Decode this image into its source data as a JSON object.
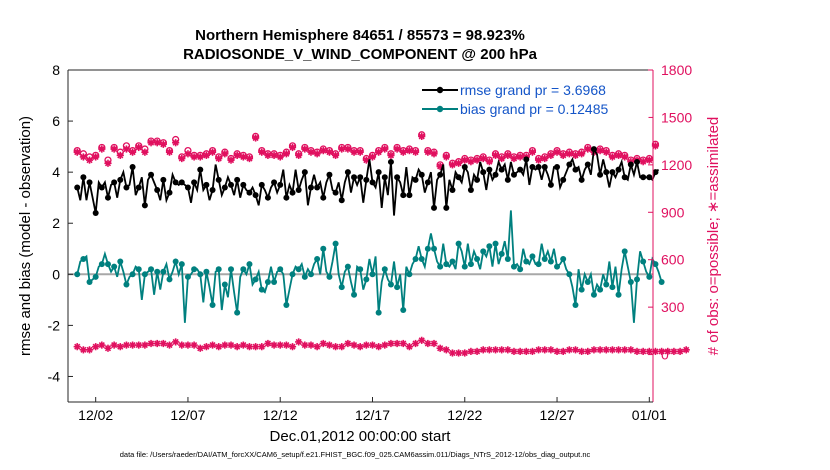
{
  "chart_data": {
    "type": "line",
    "title_line1": "Northern Hemisphere 84651 / 85573 = 98.923%",
    "title_line2": "RADIOSONDE_V_WIND_COMPONENT @ 200 hPa",
    "xlabel": "Dec.01,2012 00:00:00 start",
    "ylabel_left": "rmse and bias (model - observation)",
    "ylabel_right": "# of obs: o=possible; ∗=assimilated",
    "footer": "data file: /Users/raeder/DAI/ATM_forcXX/CAM6_setup/f.e21.FHIST_BGC.f09_025.CAM6assim.011/Diags_NTrS_2012-12/obs_diag_output.nc",
    "x_range": [
      -0.5,
      31.2
    ],
    "xticks": [
      {
        "x": 1,
        "label": "12/02"
      },
      {
        "x": 6,
        "label": "12/07"
      },
      {
        "x": 11,
        "label": "12/12"
      },
      {
        "x": 16,
        "label": "12/17"
      },
      {
        "x": 21,
        "label": "12/22"
      },
      {
        "x": 26,
        "label": "12/27"
      },
      {
        "x": 31,
        "label": "01/01"
      }
    ],
    "yleft": {
      "min": -5,
      "max": 8,
      "ticks": [
        -4,
        -2,
        0,
        2,
        4,
        6,
        8
      ]
    },
    "yright": {
      "min": -300,
      "max": 1800,
      "ticks": [
        0,
        300,
        600,
        900,
        1200,
        1500,
        1800
      ]
    },
    "legend": [
      {
        "name": "rmse grand pr = 3.6968"
      },
      {
        "name": "bias grand pr = 0.12485"
      }
    ],
    "series_rmse": {
      "name": "rmse",
      "color": "#000000",
      "values": [
        3.4,
        2.9,
        3.8,
        2.9,
        3.6,
        3.0,
        2.4,
        3.6,
        3.4,
        3.6,
        3.0,
        3.5,
        3.6,
        3.0,
        3.7,
        4.0,
        3.4,
        3.5,
        4.2,
        3.1,
        3.4,
        3.8,
        2.7,
        3.7,
        3.9,
        3.6,
        3.3,
        2.9,
        3.7,
        2.9,
        3.2,
        3.9,
        3.6,
        3.5,
        3.6,
        3.5,
        3.4,
        2.8,
        3.6,
        3.3,
        4.1,
        3.3,
        3.5,
        2.9,
        3.3,
        4.3,
        3.7,
        3.1,
        3.4,
        3.8,
        3.5,
        3.1,
        3.7,
        3.0,
        3.5,
        3.3,
        3.2,
        3.4,
        3.1,
        2.7,
        3.5,
        3.3,
        3.0,
        3.4,
        3.6,
        3.2,
        3.5,
        4.1,
        3.0,
        3.5,
        3.2,
        4.1,
        3.3,
        3.7,
        4.0,
        2.7,
        3.4,
        3.9,
        3.4,
        3.6,
        3.0,
        3.6,
        3.9,
        3.3,
        3.2,
        3.6,
        2.9,
        3.6,
        4.0,
        3.2,
        3.8,
        3.5,
        3.8,
        2.8,
        3.7,
        4.5,
        3.6,
        3.4,
        4.0,
        2.6,
        3.8,
        3.1,
        4.4,
        2.3,
        3.8,
        3.6,
        3.1,
        4.2,
        3.1,
        3.8,
        3.7,
        4.1,
        3.9,
        3.2,
        3.6,
        4.0,
        2.6,
        3.7,
        3.9,
        4.3,
        2.6,
        3.7,
        3.3,
        4.0,
        3.8,
        3.6,
        4.2,
        4.0,
        3.3,
        3.9,
        3.7,
        4.4,
        4.0,
        3.3,
        4.1,
        3.7,
        3.9,
        4.4,
        4.1,
        4.3,
        3.7,
        4.4,
        3.9,
        4.0,
        4.1,
        3.9,
        4.5,
        3.5,
        4.2,
        4.1,
        4.2,
        3.7,
        4.2,
        3.9,
        3.5,
        4.2,
        4.2,
        3.4,
        3.7,
        4.0,
        4.3,
        4.5,
        4.1,
        4.2,
        3.7,
        4.1,
        4.3,
        3.9,
        4.9,
        4.7,
        3.9,
        4.5,
        4.0,
        3.4,
        4.0,
        3.8,
        4.1,
        4.4,
        3.8,
        3.7,
        4.3,
        3.9,
        4.4,
        3.8,
        3.8,
        3.8,
        3.8,
        3.7,
        4.0,
        4.1
      ]
    },
    "series_bias": {
      "name": "bias",
      "color": "#00807f",
      "values": [
        0.0,
        0.5,
        0.6,
        0.7,
        -0.3,
        -0.2,
        -0.1,
        0.3,
        0.4,
        0.8,
        0.4,
        0.1,
        0.3,
        -0.1,
        0.5,
        0.1,
        -0.4,
        -0.1,
        0.0,
        0.3,
        0.2,
        -1.0,
        0.0,
        0.1,
        0.2,
        -0.8,
        0.1,
        -0.6,
        0.1,
        0.4,
        -0.2,
        0.1,
        0.5,
        0.0,
        0.4,
        -1.9,
        -0.1,
        0.0,
        0.2,
        0.2,
        0.0,
        -1.1,
        0.1,
        -0.5,
        -1.2,
        0.1,
        0.2,
        -1.4,
        -0.4,
        -0.9,
        0.2,
        -0.7,
        -1.5,
        -0.1,
        0.2,
        0.0,
        0.4,
        -0.4,
        -0.2,
        0.1,
        -0.6,
        -0.7,
        -0.3,
        0.3,
        -0.3,
        0.1,
        0.2,
        0.0,
        -1.2,
        -0.6,
        0.0,
        0.3,
        0.2,
        0.4,
        -0.1,
        0.2,
        0.0,
        0.4,
        0.6,
        0.0,
        1.0,
        0.1,
        -0.1,
        0.5,
        1.2,
        0.0,
        -0.5,
        0.1,
        0.3,
        -0.3,
        -0.8,
        0.3,
        0.2,
        -0.6,
        -0.2,
        0.6,
        0.0,
        0.7,
        -1.5,
        -0.3,
        0.2,
        -0.2,
        -0.4,
        0.5,
        -0.5,
        0.0,
        -1.4,
        0.3,
        0.0,
        0.4,
        0.6,
        1.1,
        0.6,
        0.3,
        1.0,
        1.6,
        1.0,
        0.5,
        0.3,
        1.2,
        0.4,
        0.3,
        0.5,
        0.2,
        1.2,
        0.9,
        0.3,
        1.2,
        0.4,
        0.9,
        0.6,
        0.2,
        0.9,
        0.7,
        1.1,
        0.3,
        1.2,
        0.4,
        0.8,
        1.3,
        0.6,
        2.5,
        0.3,
        0.4,
        0.2,
        1.0,
        0.5,
        0.4,
        0.7,
        0.4,
        0.4,
        1.2,
        0.6,
        0.9,
        0.5,
        1.0,
        0.3,
        0.4,
        0.6,
        0.2,
        0.0,
        -0.5,
        -1.2,
        0.2,
        -0.6,
        0.0,
        -0.3,
        0.0,
        -0.8,
        -0.4,
        -0.6,
        0.0,
        -0.4,
        0.5,
        -0.5,
        0.3,
        -0.8,
        0.2,
        0.9,
        0.3,
        -0.3,
        -1.9,
        -0.2,
        0.9,
        0.5,
        0.1,
        -0.1,
        0.6,
        0.4,
        0.1,
        -0.3
      ]
    },
    "series_obs_possible": {
      "name": "# of obs possible",
      "color": "#e0105f",
      "values": [
        1290,
        1280,
        1270,
        1305,
        1250,
        1290,
        1260,
        1260,
        1310,
        1280,
        1230,
        1290,
        1310,
        1310,
        1280,
        1330,
        1320,
        1300,
        1290,
        1350,
        1320,
        1310,
        1300,
        1340,
        1350,
        1330,
        1350,
        1380,
        1340,
        1320,
        1290,
        1300,
        1360,
        1300,
        1250,
        1290,
        1290,
        1320,
        1260,
        1270,
        1260,
        1330,
        1270,
        1300,
        1290,
        1250,
        1250,
        1270,
        1280,
        1240,
        1240,
        1260,
        1270,
        1250,
        1260,
        1260,
        1250,
        1340,
        1380,
        1310,
        1290,
        1280,
        1270,
        1300,
        1270,
        1320,
        1260,
        1320,
        1280,
        1300,
        1320,
        1280,
        1270,
        1280,
        1310,
        1300,
        1290,
        1290,
        1280,
        1300,
        1300,
        1290,
        1290,
        1290,
        1270,
        1300,
        1310,
        1280,
        1310,
        1290,
        1290,
        1310,
        1290,
        1290,
        1240,
        1250,
        1260,
        1240,
        1290,
        1250,
        1310,
        1300,
        1270,
        1290,
        1310,
        1320,
        1290,
        1250,
        1300,
        1270,
        1290,
        1270,
        1390,
        1410,
        1290,
        1250,
        1280,
        1230,
        1200,
        1210,
        1260,
        1230,
        1210,
        1240,
        1220,
        1260,
        1240,
        1250,
        1230,
        1230,
        1240,
        1250,
        1250,
        1240,
        1230,
        1250,
        1270,
        1240,
        1250,
        1250,
        1270,
        1250,
        1250,
        1250,
        1260,
        1280,
        1260,
        1260,
        1290,
        1280,
        1240,
        1270,
        1250,
        1250,
        1270,
        1270,
        1290,
        1300,
        1270,
        1310,
        1280,
        1300,
        1270,
        1290,
        1280,
        1300,
        1310,
        1260,
        1290,
        1300,
        1300,
        1310,
        1290,
        1300,
        1260,
        1260,
        1270,
        1280,
        1260,
        1270,
        1230,
        1220,
        1240,
        1250,
        1230,
        1230,
        1240,
        1260,
        1330,
        1280
      ]
    },
    "series_obs_assimilated": {
      "name": "# of obs assimilated",
      "color": "#e0105f",
      "values": [
        1280,
        1270,
        1250,
        1290,
        1230,
        1280,
        1250,
        1250,
        1300,
        1260,
        1210,
        1270,
        1300,
        1290,
        1260,
        1320,
        1300,
        1280,
        1280,
        1340,
        1310,
        1290,
        1280,
        1330,
        1340,
        1320,
        1340,
        1370,
        1330,
        1310,
        1280,
        1290,
        1340,
        1290,
        1240,
        1280,
        1270,
        1310,
        1250,
        1260,
        1250,
        1320,
        1260,
        1290,
        1280,
        1240,
        1240,
        1260,
        1270,
        1230,
        1230,
        1250,
        1260,
        1240,
        1250,
        1250,
        1240,
        1330,
        1370,
        1300,
        1280,
        1270,
        1260,
        1290,
        1260,
        1310,
        1250,
        1310,
        1270,
        1290,
        1310,
        1270,
        1260,
        1270,
        1300,
        1290,
        1280,
        1280,
        1270,
        1290,
        1290,
        1280,
        1280,
        1280,
        1260,
        1290,
        1300,
        1270,
        1300,
        1280,
        1280,
        1300,
        1280,
        1280,
        1230,
        1240,
        1250,
        1230,
        1280,
        1240,
        1300,
        1290,
        1260,
        1280,
        1300,
        1310,
        1280,
        1240,
        1290,
        1260,
        1280,
        1260,
        1380,
        1400,
        1280,
        1240,
        1270,
        1220,
        1190,
        1200,
        1250,
        1220,
        1200,
        1230,
        1210,
        1250,
        1230,
        1240,
        1220,
        1220,
        1230,
        1240,
        1240,
        1230,
        1220,
        1240,
        1260,
        1230,
        1240,
        1240,
        1260,
        1240,
        1240,
        1240,
        1250,
        1270,
        1250,
        1250,
        1280,
        1270,
        1230,
        1260,
        1240,
        1240,
        1260,
        1260,
        1280,
        1290,
        1260,
        1300,
        1270,
        1290,
        1260,
        1280,
        1270,
        1290,
        1300,
        1250,
        1280,
        1290,
        1290,
        1300,
        1280,
        1290,
        1250,
        1250,
        1260,
        1270,
        1250,
        1260,
        1220,
        1210,
        1230,
        1240,
        1220,
        1220,
        1230,
        1250,
        1320,
        1270
      ]
    },
    "series_obs_low_assimilated": {
      "name": "# of obs (low)",
      "color": "#e0105f",
      "values": [
        50,
        40,
        30,
        40,
        30,
        40,
        50,
        40,
        60,
        50,
        40,
        50,
        60,
        40,
        50,
        50,
        60,
        70,
        60,
        50,
        60,
        80,
        60,
        60,
        70,
        60,
        70,
        60,
        70,
        70,
        60,
        70,
        80,
        60,
        60,
        70,
        60,
        70,
        60,
        50,
        40,
        60,
        50,
        60,
        60,
        50,
        50,
        50,
        60,
        50,
        60,
        60,
        50,
        60,
        60,
        50,
        50,
        60,
        50,
        60,
        50,
        60,
        70,
        50,
        60,
        50,
        60,
        50,
        60,
        60,
        50,
        60,
        80,
        70,
        60,
        70,
        60,
        60,
        50,
        60,
        70,
        60,
        60,
        60,
        50,
        60,
        50,
        60,
        70,
        60,
        60,
        60,
        50,
        60,
        60,
        50,
        60,
        70,
        50,
        60,
        60,
        60,
        70,
        80,
        70,
        60,
        70,
        60,
        50,
        60,
        70,
        80,
        90,
        80,
        70,
        80,
        70,
        60,
        40,
        30,
        30,
        20,
        10,
        20,
        10,
        20,
        10,
        20,
        20,
        30,
        20,
        20,
        30,
        20,
        30,
        20,
        30,
        20,
        30,
        20,
        30,
        30,
        20,
        30,
        20,
        30,
        20,
        30,
        20,
        20,
        30,
        20,
        30,
        20,
        30,
        20,
        20,
        30,
        20,
        30,
        30,
        20,
        30,
        20,
        20,
        30,
        20,
        20,
        30,
        20,
        30,
        20,
        30,
        20,
        30,
        20,
        30,
        20,
        30,
        20,
        30,
        30,
        20,
        30,
        20,
        30,
        20,
        30,
        20,
        30,
        20,
        30,
        20,
        30,
        20,
        30,
        20,
        20,
        30,
        -30
      ]
    }
  }
}
